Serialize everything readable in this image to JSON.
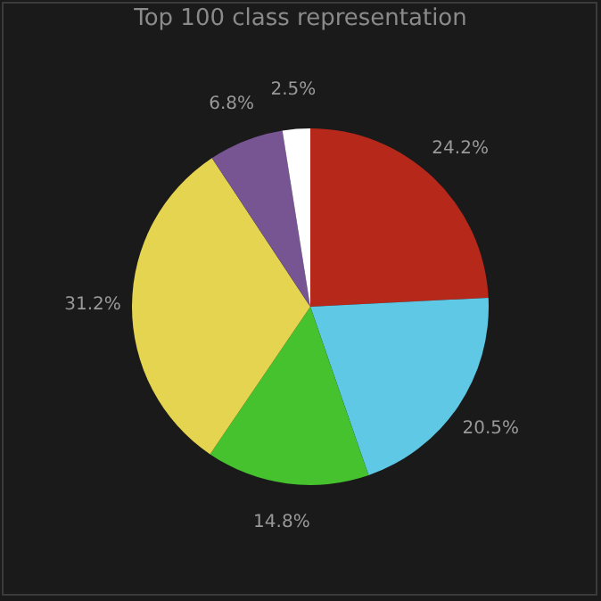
{
  "chart_data": {
    "type": "pie",
    "title": "Top 100 class representation",
    "categories": [
      null,
      null,
      null,
      null,
      null,
      null
    ],
    "values": [
      24.2,
      20.5,
      14.8,
      31.2,
      6.8,
      2.5
    ],
    "colors": [
      "#b5281a",
      "#5ec8e5",
      "#45c22e",
      "#e5d44f",
      "#775593",
      "#ffffff"
    ],
    "value_labels": [
      "24.2%",
      "20.5%",
      "14.8%",
      "31.2%",
      "6.8%",
      "2.5%"
    ]
  }
}
